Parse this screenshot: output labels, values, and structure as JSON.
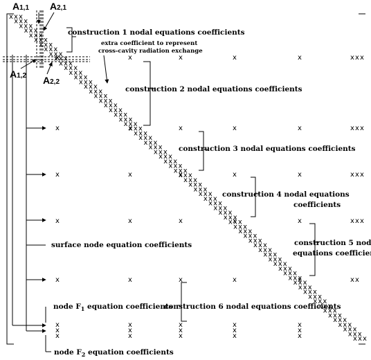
{
  "blocks": {
    "a11": {
      "main": "A",
      "sub": "1,1"
    },
    "a21": {
      "main": "A",
      "sub": "2,1"
    },
    "a12": {
      "main": "A",
      "sub": "1,2"
    },
    "a22": {
      "main": "A",
      "sub": "2,2"
    }
  },
  "cell_mark": "x",
  "labels": {
    "c1": "construction 1 nodal equations coefficients",
    "extra_1": "extra coefficient to represent",
    "extra_2": "cross-cavity radiation exchange",
    "c2": "construction 2 nodal equations coefficients",
    "c3": "construction 3 nodal equations coefficients",
    "c4_1": "construction 4 nodal equations",
    "c4_2": "coefficients",
    "c5_1": "construction 5 nodal",
    "c5_2": "equations coefficients",
    "surface": "surface node equation coefficients",
    "f1_pre": "node F",
    "f1_sub": "1",
    "f1_post": " equation coefficients",
    "c6": "construction 6 nodal equations coefficients",
    "f2_pre": "node F",
    "f2_sub": "2",
    "f2_post": " equation coefficients"
  }
}
